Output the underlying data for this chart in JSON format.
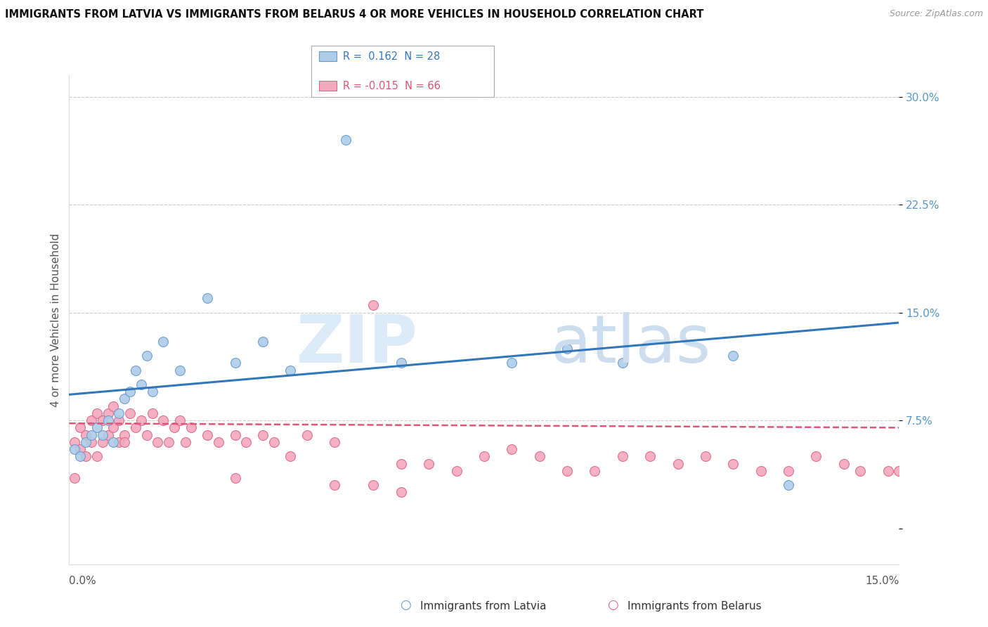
{
  "title": "IMMIGRANTS FROM LATVIA VS IMMIGRANTS FROM BELARUS 4 OR MORE VEHICLES IN HOUSEHOLD CORRELATION CHART",
  "source": "Source: ZipAtlas.com",
  "ylabel": "4 or more Vehicles in Household",
  "y_ticks": [
    0.0,
    0.075,
    0.15,
    0.225,
    0.3
  ],
  "y_tick_labels": [
    "",
    "7.5%",
    "15.0%",
    "22.5%",
    "30.0%"
  ],
  "x_min": 0.0,
  "x_max": 0.15,
  "y_min": -0.025,
  "y_max": 0.315,
  "latvia_color": "#aecce8",
  "latvia_edge_color": "#6699cc",
  "belarus_color": "#f4a8be",
  "belarus_edge_color": "#dd6688",
  "latvia_R": 0.162,
  "latvia_N": 28,
  "belarus_R": -0.015,
  "belarus_N": 66,
  "legend_label_1": "Immigrants from Latvia",
  "legend_label_2": "Immigrants from Belarus",
  "latvia_scatter_x": [
    0.001,
    0.002,
    0.003,
    0.004,
    0.005,
    0.006,
    0.007,
    0.008,
    0.009,
    0.01,
    0.011,
    0.012,
    0.013,
    0.014,
    0.015,
    0.017,
    0.02,
    0.025,
    0.03,
    0.035,
    0.04,
    0.05,
    0.06,
    0.08,
    0.09,
    0.1,
    0.12,
    0.13
  ],
  "latvia_scatter_y": [
    0.055,
    0.05,
    0.06,
    0.065,
    0.07,
    0.065,
    0.075,
    0.06,
    0.08,
    0.09,
    0.095,
    0.11,
    0.1,
    0.12,
    0.095,
    0.13,
    0.11,
    0.16,
    0.115,
    0.13,
    0.11,
    0.27,
    0.115,
    0.115,
    0.125,
    0.115,
    0.12,
    0.03
  ],
  "belarus_scatter_x": [
    0.001,
    0.001,
    0.002,
    0.002,
    0.003,
    0.003,
    0.004,
    0.004,
    0.005,
    0.005,
    0.006,
    0.006,
    0.007,
    0.007,
    0.008,
    0.008,
    0.009,
    0.009,
    0.01,
    0.011,
    0.012,
    0.013,
    0.014,
    0.015,
    0.016,
    0.017,
    0.018,
    0.019,
    0.02,
    0.021,
    0.022,
    0.025,
    0.027,
    0.03,
    0.032,
    0.035,
    0.037,
    0.04,
    0.043,
    0.048,
    0.055,
    0.06,
    0.065,
    0.07,
    0.075,
    0.08,
    0.085,
    0.09,
    0.095,
    0.1,
    0.105,
    0.11,
    0.115,
    0.12,
    0.125,
    0.13,
    0.135,
    0.14,
    0.143,
    0.148,
    0.15,
    0.055,
    0.06,
    0.048,
    0.03,
    0.01
  ],
  "belarus_scatter_y": [
    0.06,
    0.035,
    0.055,
    0.07,
    0.05,
    0.065,
    0.06,
    0.075,
    0.05,
    0.08,
    0.06,
    0.075,
    0.065,
    0.08,
    0.07,
    0.085,
    0.06,
    0.075,
    0.065,
    0.08,
    0.07,
    0.075,
    0.065,
    0.08,
    0.06,
    0.075,
    0.06,
    0.07,
    0.075,
    0.06,
    0.07,
    0.065,
    0.06,
    0.065,
    0.06,
    0.065,
    0.06,
    0.05,
    0.065,
    0.06,
    0.155,
    0.045,
    0.045,
    0.04,
    0.05,
    0.055,
    0.05,
    0.04,
    0.04,
    0.05,
    0.05,
    0.045,
    0.05,
    0.045,
    0.04,
    0.04,
    0.05,
    0.045,
    0.04,
    0.04,
    0.04,
    0.03,
    0.025,
    0.03,
    0.035,
    0.06
  ],
  "latvia_line_x": [
    0.0,
    0.15
  ],
  "latvia_line_y": [
    0.093,
    0.143
  ],
  "belarus_line_x": [
    0.0,
    0.15
  ],
  "belarus_line_y": [
    0.073,
    0.07
  ],
  "grid_color": "#cccccc",
  "line_latvia_color": "#3377bb",
  "line_belarus_color": "#dd5577",
  "background_color": "#ffffff",
  "tick_color": "#5599cc",
  "marker_size": 100
}
